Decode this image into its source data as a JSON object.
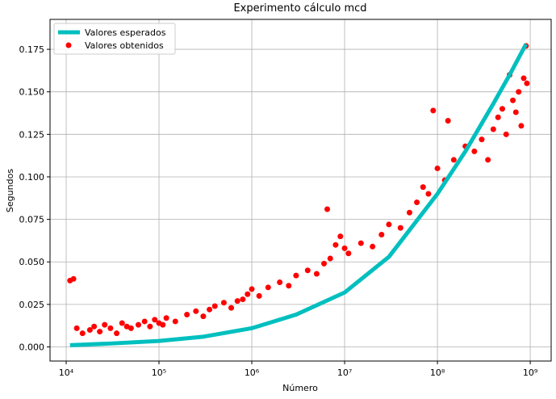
{
  "chart_data": {
    "type": "line",
    "title": "Experimento cálculo mcd",
    "xlabel": "Número",
    "ylabel": "Segundos",
    "xscale": "log",
    "grid": true,
    "legend": "upper left",
    "xlim": [
      6700,
      1680000000
    ],
    "ylim": [
      -0.0083,
      0.1926
    ],
    "xticks": [
      {
        "value": 10000,
        "label": "10⁴"
      },
      {
        "value": 100000,
        "label": "10⁵"
      },
      {
        "value": 1000000,
        "label": "10⁶"
      },
      {
        "value": 10000000,
        "label": "10⁷"
      },
      {
        "value": 100000000,
        "label": "10⁸"
      },
      {
        "value": 1000000000,
        "label": "10⁹"
      }
    ],
    "yticks": [
      {
        "value": 0,
        "label": "0.000"
      },
      0.025,
      {
        "value": 0.05,
        "label": "0.050"
      },
      0.075,
      {
        "value": 0.1,
        "label": "0.100"
      },
      0.125,
      {
        "value": 0.15,
        "label": "0.150"
      },
      0.175
    ],
    "series": [
      {
        "name": "Valores esperados",
        "type": "line",
        "color": "#00bfbf",
        "x": [
          11000,
          30000,
          100000,
          300000,
          1000000,
          3000000,
          10000000,
          30000000,
          100000000,
          200000000,
          400000000,
          600000000,
          900000000
        ],
        "values": [
          0.001,
          0.002,
          0.0035,
          0.006,
          0.011,
          0.019,
          0.032,
          0.053,
          0.09,
          0.115,
          0.143,
          0.16,
          0.178
        ]
      },
      {
        "name": "Valores obtenidos",
        "type": "scatter",
        "color": "#ff0000",
        "x": [
          11000,
          12000,
          13000,
          15000,
          18000,
          20000,
          23000,
          26000,
          30000,
          35000,
          40000,
          45000,
          50000,
          60000,
          70000,
          80000,
          90000,
          100000,
          110000,
          120000,
          150000,
          200000,
          250000,
          300000,
          350000,
          400000,
          500000,
          600000,
          700000,
          800000,
          900000,
          1000000,
          1200000,
          1500000,
          2000000,
          2500000,
          3000000,
          4000000,
          5000000,
          6000000,
          6500000,
          7000000,
          8000000,
          9000000,
          10000000,
          11000000,
          15000000,
          20000000,
          25000000,
          30000000,
          40000000,
          50000000,
          60000000,
          70000000,
          80000000,
          90000000,
          100000000,
          120000000,
          130000000,
          150000000,
          200000000,
          250000000,
          300000000,
          350000000,
          400000000,
          450000000,
          500000000,
          550000000,
          600000000,
          650000000,
          700000000,
          750000000,
          800000000,
          850000000,
          900000000,
          920000000
        ],
        "values": [
          0.039,
          0.04,
          0.011,
          0.008,
          0.01,
          0.012,
          0.009,
          0.013,
          0.011,
          0.008,
          0.014,
          0.012,
          0.011,
          0.013,
          0.015,
          0.012,
          0.016,
          0.014,
          0.013,
          0.017,
          0.015,
          0.019,
          0.021,
          0.018,
          0.022,
          0.024,
          0.026,
          0.023,
          0.027,
          0.028,
          0.031,
          0.034,
          0.03,
          0.035,
          0.038,
          0.036,
          0.042,
          0.045,
          0.043,
          0.049,
          0.081,
          0.052,
          0.06,
          0.065,
          0.058,
          0.055,
          0.061,
          0.059,
          0.066,
          0.072,
          0.07,
          0.079,
          0.085,
          0.094,
          0.09,
          0.139,
          0.105,
          0.098,
          0.133,
          0.11,
          0.118,
          0.115,
          0.122,
          0.11,
          0.128,
          0.135,
          0.14,
          0.125,
          0.16,
          0.145,
          0.138,
          0.15,
          0.13,
          0.158,
          0.177,
          0.155
        ]
      }
    ]
  }
}
